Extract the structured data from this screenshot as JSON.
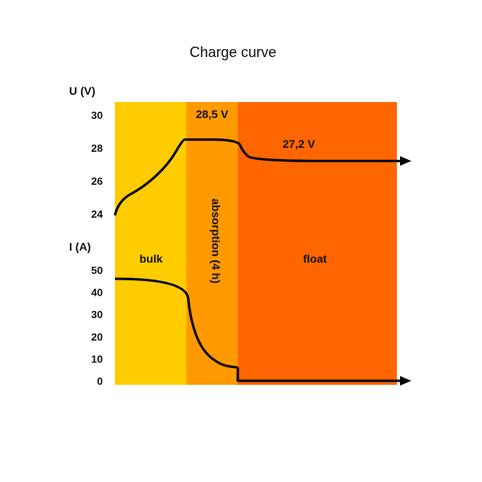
{
  "chart_data": {
    "type": "line",
    "title": "Charge curve",
    "voltage_axis": {
      "label": "U (V)",
      "ticks": [
        30,
        28,
        26,
        24
      ],
      "range": [
        24,
        30
      ]
    },
    "current_axis": {
      "label": "I (A)",
      "ticks": [
        50,
        40,
        30,
        20,
        10,
        0
      ],
      "range": [
        0,
        50
      ]
    },
    "phases": [
      {
        "name": "bulk",
        "color": "#FFCC00"
      },
      {
        "name": "absorption (4 h)",
        "color": "#FF9900"
      },
      {
        "name": "float",
        "color": "#FF6600"
      }
    ],
    "annotations": {
      "absorption_voltage": "28,5 V",
      "float_voltage": "27,2 V"
    },
    "series": [
      {
        "name": "U (V)",
        "points": [
          [
            0,
            23.9
          ],
          [
            0.05,
            24.8
          ],
          [
            0.4,
            25.6
          ],
          [
            0.75,
            27.0
          ],
          [
            0.95,
            28.5
          ],
          [
            1.0,
            28.5
          ],
          [
            1.68,
            28.5
          ],
          [
            1.75,
            27.8
          ],
          [
            1.9,
            27.2
          ],
          [
            4.0,
            27.2
          ]
        ]
      },
      {
        "name": "I (A)",
        "points": [
          [
            0,
            46
          ],
          [
            1.0,
            46
          ],
          [
            1.05,
            28
          ],
          [
            1.2,
            14
          ],
          [
            1.45,
            7
          ],
          [
            1.68,
            6
          ],
          [
            1.68,
            0
          ],
          [
            4.0,
            0
          ]
        ]
      }
    ]
  }
}
